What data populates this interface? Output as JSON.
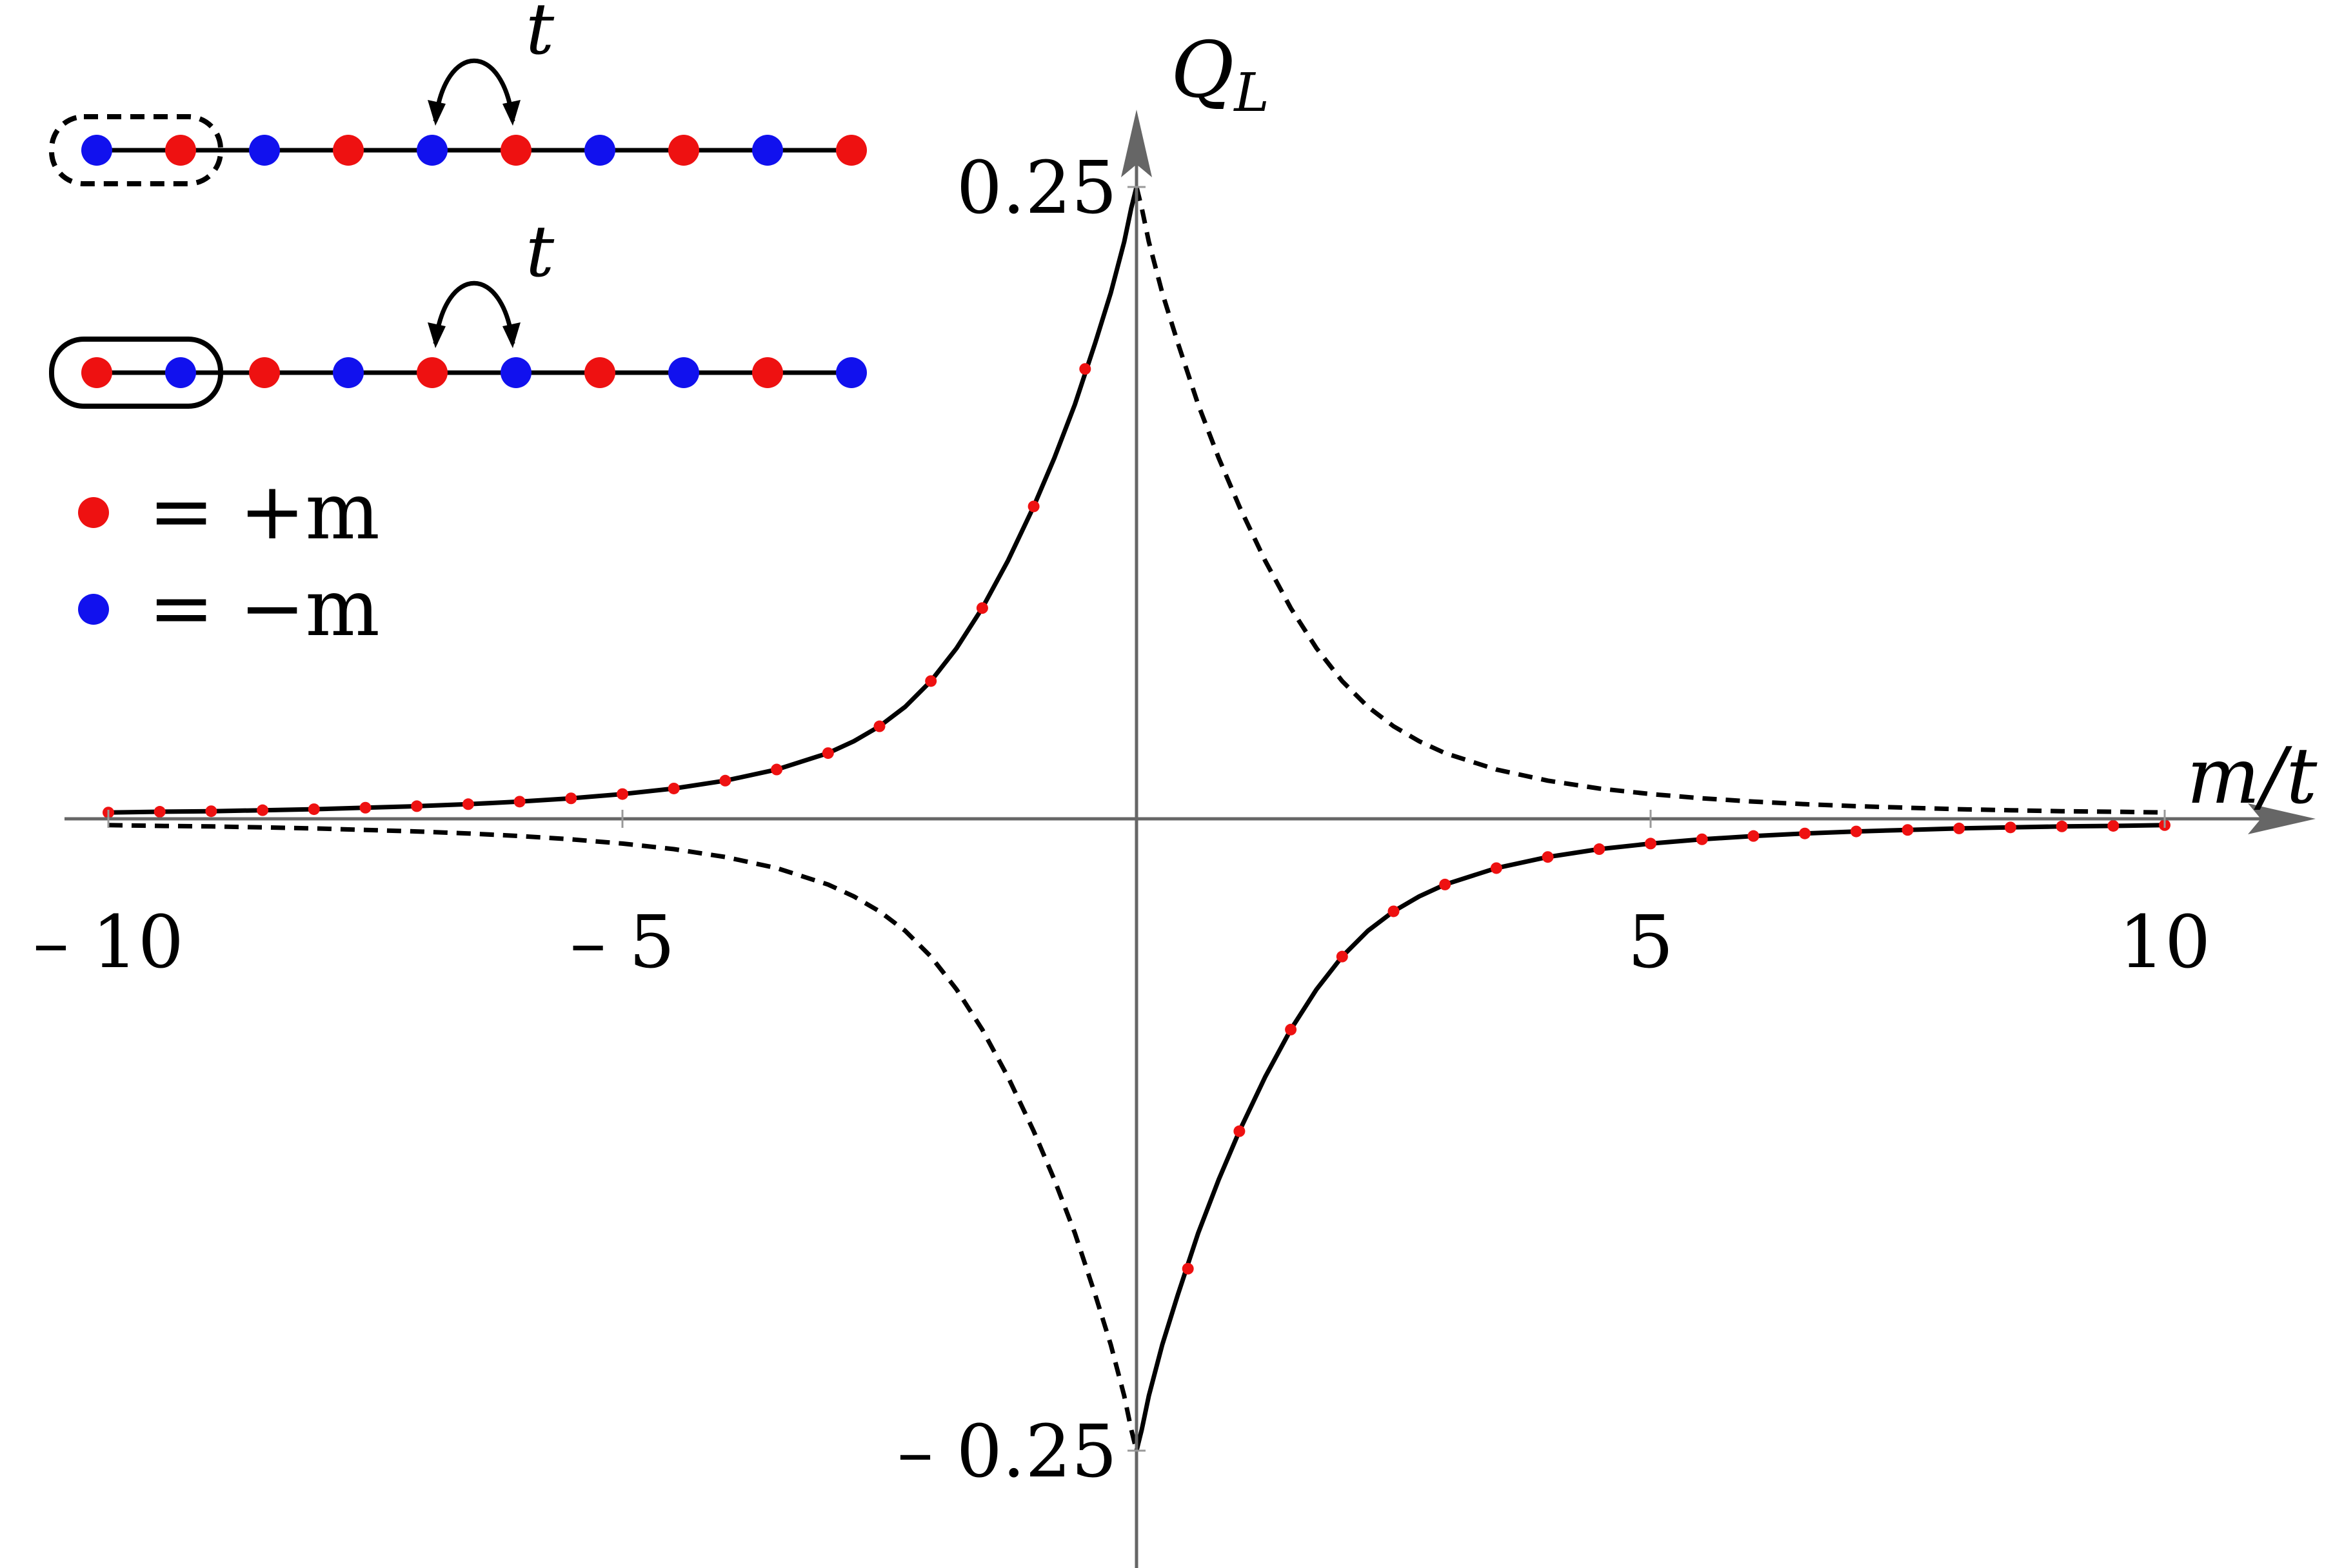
{
  "chart_data": {
    "type": "line",
    "title": "",
    "xlabel": "m/t",
    "ylabel": "Q",
    "ylabel_subscript": "L",
    "xlim": [
      -10.5,
      11.2
    ],
    "ylim": [
      -0.285,
      0.28
    ],
    "x_ticks": [
      {
        "value": -10,
        "label": "– 10"
      },
      {
        "value": -5,
        "label": "– 5"
      },
      {
        "value": 5,
        "label": "5"
      },
      {
        "value": 10,
        "label": "10"
      }
    ],
    "y_ticks": [
      {
        "value": 0.25,
        "label": "0.25"
      },
      {
        "value": -0.25,
        "label": "– 0.25"
      }
    ],
    "grid": false,
    "series": [
      {
        "style": "solid",
        "color": "#000000",
        "x": [
          -10,
          -9.5,
          -9,
          -8.5,
          -8,
          -7.5,
          -7,
          -6.5,
          -6,
          -5.5,
          -5,
          -4.5,
          -4,
          -3.5,
          -3,
          -2.75,
          -2.5,
          -2.25,
          -2,
          -1.75,
          -1.5,
          -1.25,
          -1,
          -0.8,
          -0.6,
          -0.4,
          -0.25,
          -0.12,
          -0.05,
          0,
          0.05,
          0.12,
          0.25,
          0.4,
          0.6,
          0.8,
          1,
          1.25,
          1.5,
          1.75,
          2,
          2.25,
          2.5,
          2.75,
          3,
          3.5,
          4,
          4.5,
          5,
          5.5,
          6,
          6.5,
          7,
          7.5,
          8,
          8.5,
          9,
          9.5,
          10
        ],
        "y": [
          0.0025,
          0.0028,
          0.003,
          0.0034,
          0.0038,
          0.0044,
          0.005,
          0.0058,
          0.0068,
          0.0081,
          0.0098,
          0.012,
          0.0151,
          0.0195,
          0.026,
          0.0307,
          0.0366,
          0.0443,
          0.0545,
          0.0675,
          0.0834,
          0.1022,
          0.1236,
          0.1427,
          0.1639,
          0.1885,
          0.2082,
          0.2283,
          0.2418,
          0.25,
          -0.2418,
          -0.2283,
          -0.2082,
          -0.1885,
          -0.1639,
          -0.1427,
          -0.1236,
          -0.1022,
          -0.0834,
          -0.0675,
          -0.0545,
          -0.0443,
          -0.0366,
          -0.0307,
          -0.026,
          -0.0195,
          -0.0151,
          -0.012,
          -0.0098,
          -0.0081,
          -0.0068,
          -0.0058,
          -0.005,
          -0.0044,
          -0.0038,
          -0.0034,
          -0.003,
          -0.0028,
          -0.0025
        ]
      },
      {
        "style": "dashed",
        "color": "#000000",
        "x": [
          -10,
          -9.5,
          -9,
          -8.5,
          -8,
          -7.5,
          -7,
          -6.5,
          -6,
          -5.5,
          -5,
          -4.5,
          -4,
          -3.5,
          -3,
          -2.75,
          -2.5,
          -2.25,
          -2,
          -1.75,
          -1.5,
          -1.25,
          -1,
          -0.8,
          -0.6,
          -0.4,
          -0.25,
          -0.12,
          -0.05,
          0,
          0.05,
          0.12,
          0.25,
          0.4,
          0.6,
          0.8,
          1,
          1.25,
          1.5,
          1.75,
          2,
          2.25,
          2.5,
          2.75,
          3,
          3.5,
          4,
          4.5,
          5,
          5.5,
          6,
          6.5,
          7,
          7.5,
          8,
          8.5,
          9,
          9.5,
          10
        ],
        "y": [
          -0.0025,
          -0.0028,
          -0.003,
          -0.0034,
          -0.0038,
          -0.0044,
          -0.005,
          -0.0058,
          -0.0068,
          -0.0081,
          -0.0098,
          -0.012,
          -0.0151,
          -0.0195,
          -0.026,
          -0.0307,
          -0.0366,
          -0.0443,
          -0.0545,
          -0.0675,
          -0.0834,
          -0.1022,
          -0.1236,
          -0.1427,
          -0.1639,
          -0.1885,
          -0.2082,
          -0.2283,
          -0.2418,
          -0.25,
          0.2418,
          0.2283,
          0.2082,
          0.1885,
          0.1639,
          0.1427,
          0.1236,
          0.1022,
          0.0834,
          0.0675,
          0.0545,
          0.0443,
          0.0366,
          0.0307,
          0.026,
          0.0195,
          0.0151,
          0.012,
          0.0098,
          0.0081,
          0.0068,
          0.0058,
          0.005,
          0.0044,
          0.0038,
          0.0034,
          0.003,
          0.0028,
          0.0025
        ]
      },
      {
        "style": "markers",
        "color": "#ee1111",
        "x": [
          -10,
          -9.5,
          -9,
          -8.5,
          -8,
          -7.5,
          -7,
          -6.5,
          -6,
          -5.5,
          -5,
          -4.5,
          -4,
          -3.5,
          -3,
          -2.5,
          -2,
          -1.5,
          -1,
          -0.5,
          0.5,
          1,
          1.5,
          2,
          2.5,
          3,
          3.5,
          4,
          4.5,
          5,
          5.5,
          6,
          6.5,
          7,
          7.5,
          8,
          8.5,
          9,
          9.5,
          10
        ],
        "y": [
          0.0025,
          0.0028,
          0.003,
          0.0034,
          0.0038,
          0.0044,
          0.005,
          0.0058,
          0.0068,
          0.0081,
          0.0098,
          0.012,
          0.0151,
          0.0195,
          0.026,
          0.0366,
          0.0545,
          0.0834,
          0.1236,
          0.178,
          -0.178,
          -0.1236,
          -0.0834,
          -0.0545,
          -0.0366,
          -0.026,
          -0.0195,
          -0.0151,
          -0.012,
          -0.0098,
          -0.0081,
          -0.0068,
          -0.0058,
          -0.005,
          -0.0044,
          -0.0038,
          -0.0034,
          -0.003,
          -0.0028,
          -0.0025
        ]
      }
    ],
    "inset": {
      "chains": [
        {
          "sites": [
            "-m",
            "+m",
            "-m",
            "+m",
            "-m",
            "+m",
            "-m",
            "+m",
            "-m",
            "+m"
          ],
          "boundary_box": "dashed",
          "hop_label": "t"
        },
        {
          "sites": [
            "+m",
            "-m",
            "+m",
            "-m",
            "+m",
            "-m",
            "+m",
            "-m",
            "+m",
            "-m"
          ],
          "boundary_box": "solid",
          "hop_label": "t"
        }
      ],
      "legend": [
        {
          "color": "#ee1111",
          "label": "= +m"
        },
        {
          "color": "#1111ee",
          "label": "= −m"
        }
      ]
    }
  }
}
